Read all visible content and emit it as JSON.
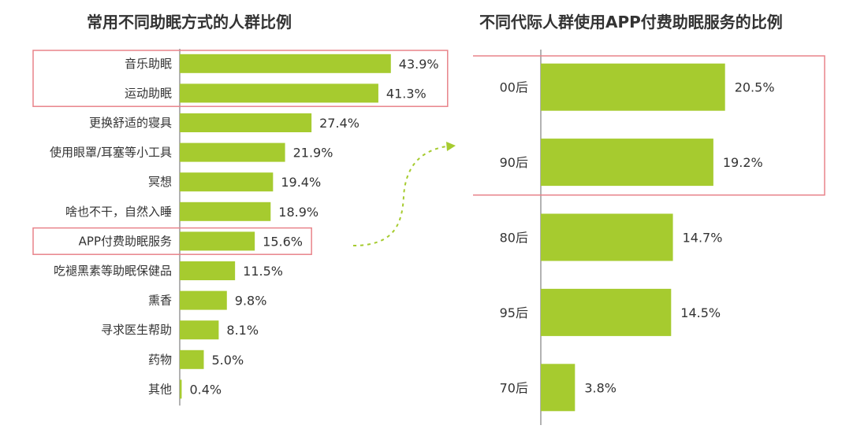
{
  "chart_data": [
    {
      "type": "bar",
      "orientation": "horizontal",
      "title": "常用不同助眠方式的人群比例",
      "categories": [
        "音乐助眠",
        "运动助眠",
        "更换舒适的寝具",
        "使用眼罩/耳塞等小工具",
        "冥想",
        "啥也不干，自然入睡",
        "APP付费助眠服务",
        "吃褪黑素等助眠保健品",
        "熏香",
        "寻求医生帮助",
        "药物",
        "其他"
      ],
      "values": [
        43.9,
        41.3,
        27.4,
        21.9,
        19.4,
        18.9,
        15.6,
        11.5,
        9.8,
        8.1,
        5.0,
        0.4
      ],
      "value_labels": [
        "43.9%",
        "41.3%",
        "27.4%",
        "21.9%",
        "19.4%",
        "18.9%",
        "15.6%",
        "11.5%",
        "9.8%",
        "8.1%",
        "5.0%",
        "0.4%"
      ],
      "highlighted": [
        "音乐助眠",
        "运动助眠",
        "APP付费助眠服务"
      ],
      "bar_color": "#a6cb2f",
      "highlight_color": "#e8838a",
      "grid": false
    },
    {
      "type": "bar",
      "orientation": "horizontal",
      "title": "不同代际人群使用APP付费助眠服务的比例",
      "categories": [
        "00后",
        "90后",
        "80后",
        "95后",
        "70后"
      ],
      "values": [
        20.5,
        19.2,
        14.7,
        14.5,
        3.8
      ],
      "value_labels": [
        "20.5%",
        "19.2%",
        "14.7%",
        "14.5%",
        "3.8%"
      ],
      "highlighted": [
        "00后",
        "90后"
      ],
      "bar_color": "#a6cb2f",
      "highlight_color": "#e8838a",
      "grid": false
    }
  ],
  "connector": {
    "color": "#a6cb2f"
  }
}
